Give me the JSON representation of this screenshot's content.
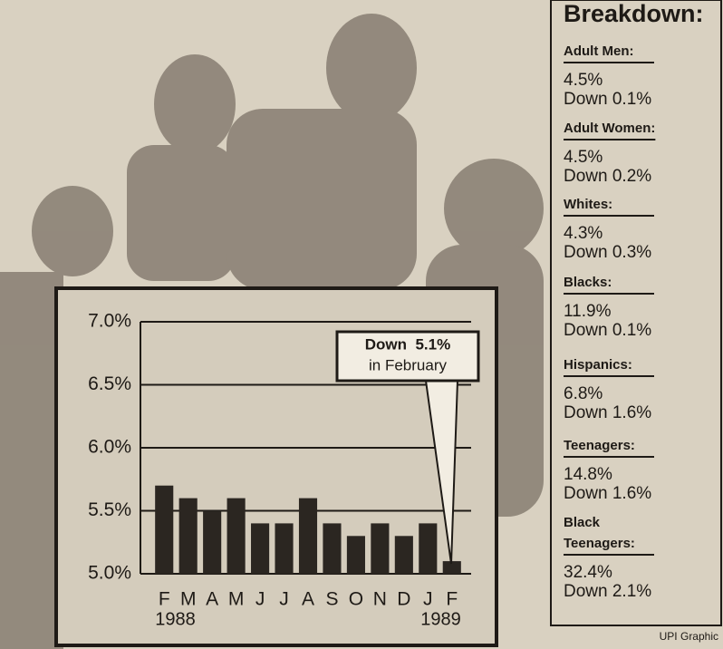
{
  "chart_data": {
    "type": "bar",
    "categories": [
      "F",
      "M",
      "A",
      "M",
      "J",
      "J",
      "A",
      "S",
      "O",
      "N",
      "D",
      "J",
      "F"
    ],
    "year_labels": [
      "1988",
      "1989"
    ],
    "values": [
      5.7,
      5.6,
      5.5,
      5.6,
      5.4,
      5.4,
      5.6,
      5.4,
      5.3,
      5.4,
      5.3,
      5.4,
      5.1
    ],
    "color": "#2b2621",
    "ylim": [
      5.0,
      7.0
    ],
    "yticks": [
      {
        "value": 5.0,
        "label": "5.0%"
      },
      {
        "value": 5.5,
        "label": "5.5%"
      },
      {
        "value": 6.0,
        "label": "6.0%"
      },
      {
        "value": 6.5,
        "label": "6.5%"
      },
      {
        "value": 7.0,
        "label": "7.0%"
      }
    ],
    "grid": true,
    "annotation": {
      "title": "Down  5.1%",
      "text": "in February"
    }
  },
  "breakdown": {
    "title": "Breakdown:",
    "groups": [
      {
        "name": "Adult Men:",
        "rate": "4.5%",
        "change": "Down 0.1%"
      },
      {
        "name": "Adult Women:",
        "rate": "4.5%",
        "change": "Down 0.2%"
      },
      {
        "name": "Whites:",
        "rate": "4.3%",
        "change": "Down 0.3%"
      },
      {
        "name": "Blacks:",
        "rate": "11.9%",
        "change": "Down 0.1%"
      },
      {
        "name": "Hispanics:",
        "rate": "6.8%",
        "change": "Down 1.6%"
      },
      {
        "name": "Teenagers:",
        "rate": "14.8%",
        "change": "Down 1.6%"
      },
      {
        "name": "Black Teenagers:",
        "rate": "32.4%",
        "change": "Down 2.1%"
      }
    ]
  },
  "credit": "UPI Graphic"
}
